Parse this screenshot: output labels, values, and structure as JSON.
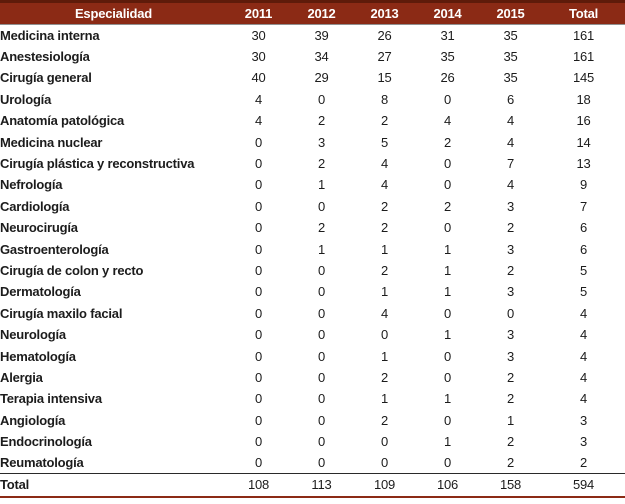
{
  "colors": {
    "header_bg": "#8B2A15",
    "header_bg_dark": "#5E1B0A",
    "header_text": "#ffffff",
    "body_text": "#1c1c1c"
  },
  "chart_data": {
    "type": "table",
    "title": "",
    "columns": [
      "Especialidad",
      "2011",
      "2012",
      "2013",
      "2014",
      "2015",
      "Total"
    ],
    "rows": [
      {
        "name": "Medicina interna",
        "values": [
          30,
          39,
          26,
          31,
          35,
          161
        ]
      },
      {
        "name": "Anestesiología",
        "values": [
          30,
          34,
          27,
          35,
          35,
          161
        ]
      },
      {
        "name": "Cirugía general",
        "values": [
          40,
          29,
          15,
          26,
          35,
          145
        ]
      },
      {
        "name": "Urología",
        "values": [
          4,
          0,
          8,
          0,
          6,
          18
        ]
      },
      {
        "name": "Anatomía patológica",
        "values": [
          4,
          2,
          2,
          4,
          4,
          16
        ]
      },
      {
        "name": "Medicina nuclear",
        "values": [
          0,
          3,
          5,
          2,
          4,
          14
        ]
      },
      {
        "name": "Cirugía plástica y reconstructiva",
        "values": [
          0,
          2,
          4,
          0,
          7,
          13
        ]
      },
      {
        "name": "Nefrología",
        "values": [
          0,
          1,
          4,
          0,
          4,
          9
        ]
      },
      {
        "name": "Cardiología",
        "values": [
          0,
          0,
          2,
          2,
          3,
          7
        ]
      },
      {
        "name": "Neurocirugía",
        "values": [
          0,
          2,
          2,
          0,
          2,
          6
        ]
      },
      {
        "name": "Gastroenterología",
        "values": [
          0,
          1,
          1,
          1,
          3,
          6
        ]
      },
      {
        "name": "Cirugía de colon y recto",
        "values": [
          0,
          0,
          2,
          1,
          2,
          5
        ]
      },
      {
        "name": "Dermatología",
        "values": [
          0,
          0,
          1,
          1,
          3,
          5
        ]
      },
      {
        "name": "Cirugía maxilo facial",
        "values": [
          0,
          0,
          4,
          0,
          0,
          4
        ]
      },
      {
        "name": "Neurología",
        "values": [
          0,
          0,
          0,
          1,
          3,
          4
        ]
      },
      {
        "name": "Hematología",
        "values": [
          0,
          0,
          1,
          0,
          3,
          4
        ]
      },
      {
        "name": "Alergia",
        "values": [
          0,
          0,
          2,
          0,
          2,
          4
        ]
      },
      {
        "name": "Terapia intensiva",
        "values": [
          0,
          0,
          1,
          1,
          2,
          4
        ]
      },
      {
        "name": "Angiología",
        "values": [
          0,
          0,
          2,
          0,
          1,
          3
        ]
      },
      {
        "name": "Endocrinología",
        "values": [
          0,
          0,
          0,
          1,
          2,
          3
        ]
      },
      {
        "name": "Reumatología",
        "values": [
          0,
          0,
          0,
          0,
          2,
          2
        ]
      }
    ],
    "total_row": {
      "name": "Total",
      "values": [
        108,
        113,
        109,
        106,
        158,
        594
      ]
    }
  }
}
